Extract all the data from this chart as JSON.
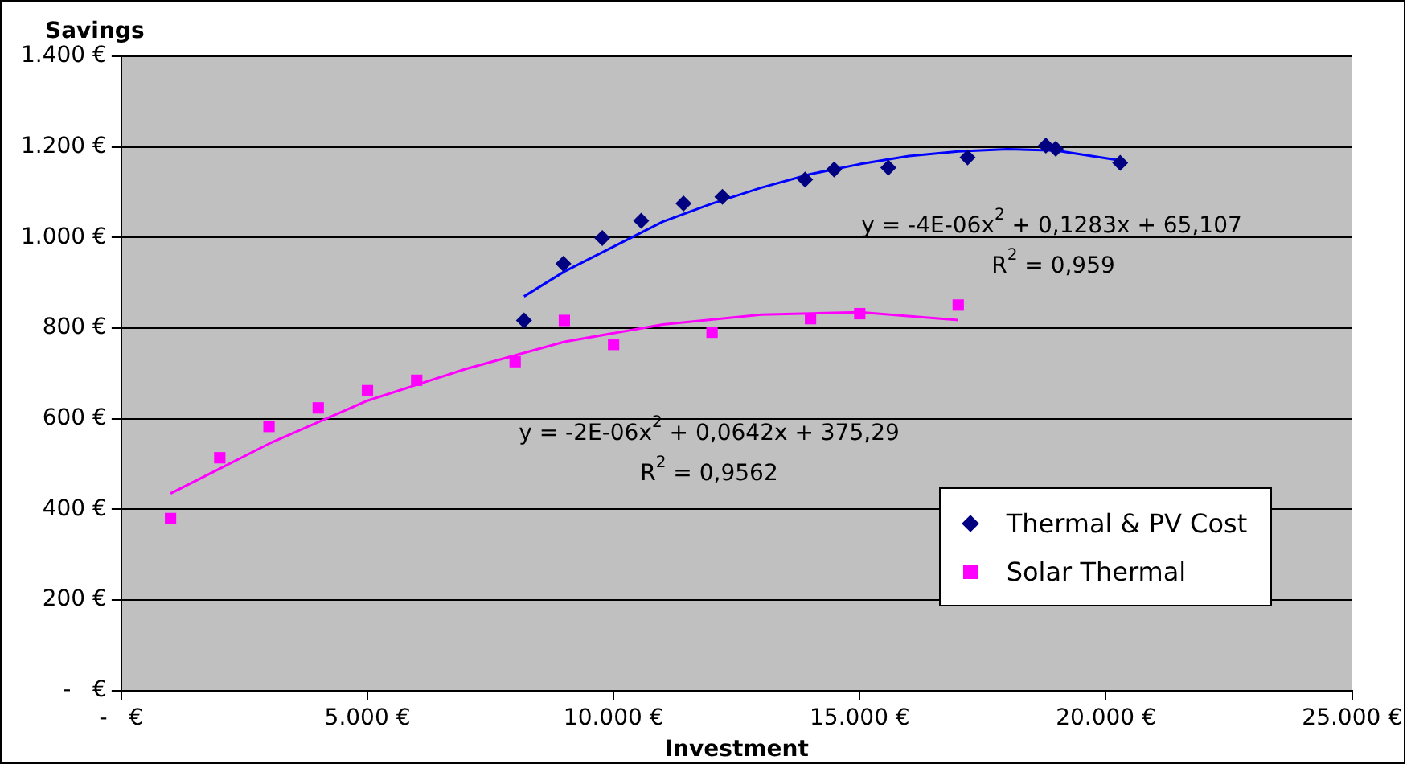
{
  "chart_data": {
    "type": "scatter",
    "ylabel": "Savings",
    "xlabel": "Investment",
    "xlim": [
      0,
      25000
    ],
    "xticks": [
      {
        "value": 0,
        "label": "-   €"
      },
      {
        "value": 5000,
        "label": "5.000 €"
      },
      {
        "value": 10000,
        "label": "10.000 €"
      },
      {
        "value": 15000,
        "label": "15.000 €"
      },
      {
        "value": 20000,
        "label": "20.000 €"
      },
      {
        "value": 25000,
        "label": "25.000 €"
      }
    ],
    "ylim": [
      0,
      1400
    ],
    "yticks": [
      {
        "value": 0,
        "label": "-   €"
      },
      {
        "value": 200,
        "label": "200 €"
      },
      {
        "value": 400,
        "label": "400 €"
      },
      {
        "value": 600,
        "label": "600 €"
      },
      {
        "value": 800,
        "label": "800 €"
      },
      {
        "value": 1000,
        "label": "1.000 €"
      },
      {
        "value": 1200,
        "label": "1.200 €"
      },
      {
        "value": 1400,
        "label": "1.400 €"
      }
    ],
    "grid": "y",
    "legend": "bottom right",
    "series": [
      {
        "name": "Thermal & PV Cost",
        "color": "#000080",
        "marker": "diamond",
        "x": [
          8180,
          8980,
          9770,
          10560,
          11420,
          12210,
          13890,
          14480,
          15580,
          17190,
          18780,
          18980,
          20290
        ],
        "values": [
          817,
          942,
          999,
          1037,
          1075,
          1090,
          1128,
          1150,
          1154,
          1177,
          1203,
          1196,
          1165
        ]
      },
      {
        "name": "Solar Thermal",
        "color": "#ff00ff",
        "marker": "square",
        "x": [
          1000,
          2000,
          3000,
          4000,
          5000,
          6000,
          8000,
          9000,
          10000,
          12000,
          14000,
          15000,
          17000
        ],
        "values": [
          380,
          514,
          583,
          624,
          662,
          685,
          726,
          817,
          764,
          791,
          821,
          832,
          851
        ]
      },
      {
        "type": "line",
        "color": "#0000ff",
        "marker": "none",
        "x": [
          8180,
          9000,
          10000,
          11000,
          12000,
          13000,
          14000,
          15000,
          16000,
          17000,
          18000,
          19000,
          20290
        ],
        "values": [
          870,
          925,
          980,
          1035,
          1075,
          1110,
          1140,
          1162,
          1180,
          1190,
          1195,
          1192,
          1170
        ]
      },
      {
        "type": "line",
        "color": "#ff00ff",
        "marker": "none",
        "x": [
          1000,
          3000,
          5000,
          7000,
          9000,
          11000,
          13000,
          15000,
          17000
        ],
        "values": [
          435,
          545,
          640,
          710,
          770,
          808,
          830,
          835,
          818
        ]
      }
    ],
    "annotations": [
      "y = -4E-06x$^{2}$ + 0,1283x + 65,107",
      "R$^{2}$ = 0,959",
      "y = -2E-06x$^{2}$ + 0,0642x + 375,29",
      "R$^{2}$ = 0,9562"
    ]
  }
}
